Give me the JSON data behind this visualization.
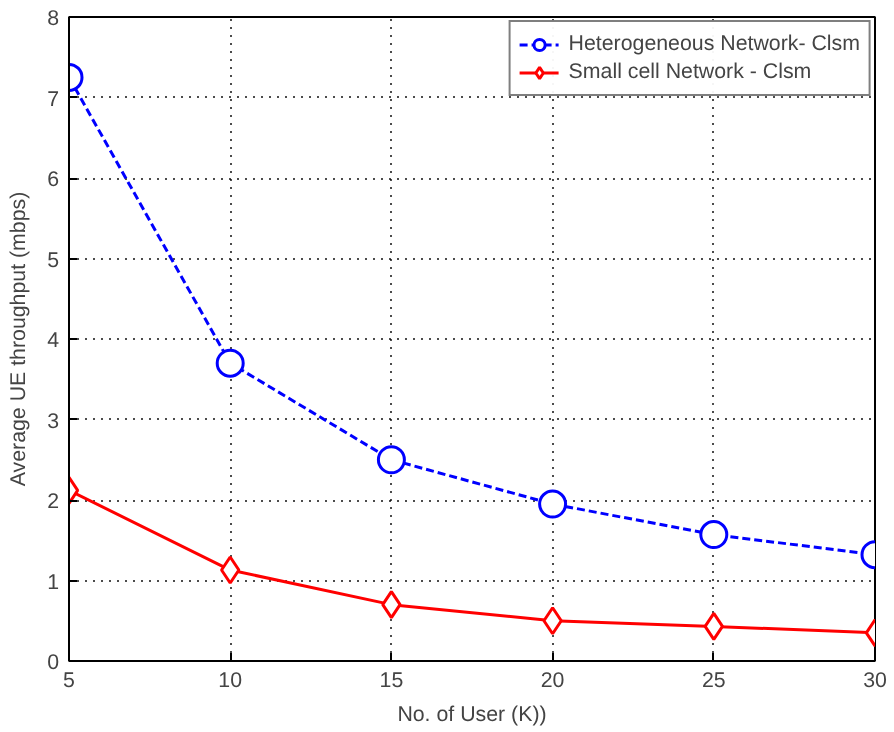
{
  "chart_data": {
    "type": "line",
    "xlabel": "No. of User (K))",
    "ylabel": "Average UE throughput (mbps)",
    "x": [
      5,
      10,
      15,
      20,
      25,
      30
    ],
    "series": [
      {
        "name": "Heterogeneous Network- Clsm",
        "color": "#0000ff",
        "marker": "circle",
        "line_style": "dashed",
        "values": [
          7.25,
          3.7,
          2.5,
          1.95,
          1.57,
          1.32
        ]
      },
      {
        "name": "Small cell Network - Clsm",
        "color": "#ff0000",
        "marker": "diamond",
        "line_style": "solid",
        "values": [
          2.12,
          1.13,
          0.7,
          0.5,
          0.43,
          0.35
        ]
      }
    ],
    "xlim": [
      5,
      30
    ],
    "ylim": [
      0,
      8
    ],
    "xticks": [
      5,
      10,
      15,
      20,
      25,
      30
    ],
    "yticks": [
      0,
      1,
      2,
      3,
      4,
      5,
      6,
      7,
      8
    ],
    "grid": true,
    "legend": "top right"
  }
}
